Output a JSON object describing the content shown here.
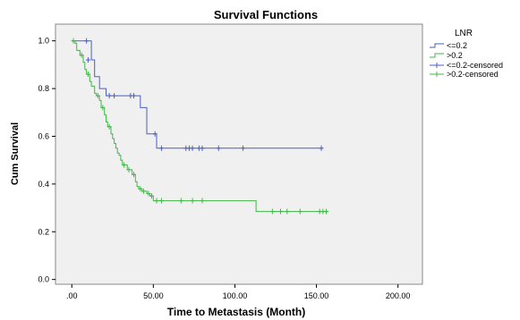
{
  "chart_data": {
    "type": "line",
    "title": "Survival Functions",
    "xlabel": "Time to Metastasis (Month)",
    "ylabel": "Cum Survival",
    "xlim": [
      -10,
      215
    ],
    "ylim": [
      -0.02,
      1.07
    ],
    "x_ticks": [
      ".00",
      "50.00",
      "100.00",
      "150.00",
      "200.00"
    ],
    "x_tick_values": [
      0,
      50,
      100,
      150,
      200
    ],
    "y_ticks": [
      "0.0",
      "0.2",
      "0.4",
      "0.6",
      "0.8",
      "1.0"
    ],
    "y_tick_values": [
      0.0,
      0.2,
      0.4,
      0.6,
      0.8,
      1.0
    ],
    "grid": false,
    "legend_position": "top-right",
    "legend": {
      "title": "LNR",
      "entries": [
        "<=0.2",
        ">0.2",
        "<=0.2-censored",
        ">0.2-censored"
      ]
    },
    "series": [
      {
        "name": "<=0.2",
        "color": "#4a5ec6",
        "steps": [
          [
            0,
            1.0
          ],
          [
            12,
            0.92
          ],
          [
            14,
            0.85
          ],
          [
            17,
            0.8
          ],
          [
            21,
            0.77
          ],
          [
            42,
            0.72
          ],
          [
            46,
            0.61
          ],
          [
            52,
            0.55
          ],
          [
            154,
            0.55
          ]
        ],
        "censored": [
          [
            9,
            1.0
          ],
          [
            10,
            0.92
          ],
          [
            23,
            0.77
          ],
          [
            26,
            0.77
          ],
          [
            36,
            0.77
          ],
          [
            38,
            0.77
          ],
          [
            51,
            0.61
          ],
          [
            55,
            0.55
          ],
          [
            70,
            0.55
          ],
          [
            72,
            0.55
          ],
          [
            74,
            0.55
          ],
          [
            78,
            0.55
          ],
          [
            80,
            0.55
          ],
          [
            90,
            0.55
          ],
          [
            105,
            0.55
          ],
          [
            153,
            0.55
          ]
        ]
      },
      {
        "name": ">0.2",
        "color": "#43b54a",
        "steps": [
          [
            0,
            1.0
          ],
          [
            2,
            0.99
          ],
          [
            3,
            0.96
          ],
          [
            5,
            0.94
          ],
          [
            7,
            0.91
          ],
          [
            8,
            0.88
          ],
          [
            9,
            0.86
          ],
          [
            11,
            0.83
          ],
          [
            12,
            0.81
          ],
          [
            14,
            0.78
          ],
          [
            15,
            0.77
          ],
          [
            17,
            0.75
          ],
          [
            18,
            0.72
          ],
          [
            20,
            0.69
          ],
          [
            21,
            0.66
          ],
          [
            22,
            0.64
          ],
          [
            24,
            0.61
          ],
          [
            25,
            0.59
          ],
          [
            26,
            0.57
          ],
          [
            27,
            0.55
          ],
          [
            28,
            0.53
          ],
          [
            29,
            0.52
          ],
          [
            30,
            0.5
          ],
          [
            31,
            0.48
          ],
          [
            34,
            0.46
          ],
          [
            37,
            0.44
          ],
          [
            39,
            0.41
          ],
          [
            40,
            0.39
          ],
          [
            41,
            0.38
          ],
          [
            43,
            0.37
          ],
          [
            46,
            0.36
          ],
          [
            48,
            0.35
          ],
          [
            50,
            0.33
          ],
          [
            113,
            0.285
          ],
          [
            156,
            0.285
          ]
        ],
        "censored": [
          [
            1,
            1.0
          ],
          [
            6,
            0.94
          ],
          [
            10,
            0.86
          ],
          [
            16,
            0.77
          ],
          [
            19,
            0.72
          ],
          [
            23,
            0.64
          ],
          [
            32,
            0.48
          ],
          [
            35,
            0.46
          ],
          [
            38,
            0.44
          ],
          [
            42,
            0.38
          ],
          [
            44,
            0.37
          ],
          [
            47,
            0.36
          ],
          [
            49,
            0.35
          ],
          [
            52,
            0.33
          ],
          [
            55,
            0.33
          ],
          [
            67,
            0.33
          ],
          [
            74,
            0.33
          ],
          [
            80,
            0.33
          ],
          [
            123,
            0.285
          ],
          [
            128,
            0.285
          ],
          [
            132,
            0.285
          ],
          [
            140,
            0.285
          ],
          [
            152,
            0.285
          ],
          [
            154,
            0.285
          ],
          [
            156,
            0.285
          ]
        ]
      }
    ]
  }
}
